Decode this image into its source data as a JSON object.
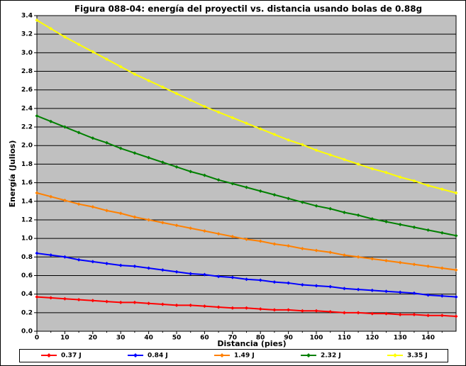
{
  "chart_data": {
    "type": "line",
    "title": "Figura 088-04: energía del proyectil vs. distancia usando bolas de 0.88g",
    "x_label": "Distancia (pies)",
    "y_label": "Energía (Julios)",
    "x": [
      0,
      5,
      10,
      15,
      20,
      25,
      30,
      35,
      40,
      45,
      50,
      55,
      60,
      65,
      70,
      75,
      80,
      85,
      90,
      95,
      100,
      105,
      110,
      115,
      120,
      125,
      130,
      135,
      140,
      145,
      150
    ],
    "xlim": [
      0,
      150
    ],
    "xticks": [
      0,
      10,
      20,
      30,
      40,
      50,
      60,
      70,
      80,
      90,
      100,
      110,
      120,
      130,
      140
    ],
    "ylim": [
      0,
      3.4
    ],
    "yticks": [
      {
        "value": 0,
        "label": "0.0"
      },
      0.2,
      0.4,
      0.6,
      0.8,
      {
        "value": 1,
        "label": "1.0"
      },
      1.2,
      1.4,
      1.6,
      1.8,
      {
        "value": 2,
        "label": "2.0"
      },
      2.2,
      2.4,
      2.6,
      2.8,
      {
        "value": 3,
        "label": "3.0"
      },
      3.2,
      3.4
    ],
    "grid": true,
    "legend": "bottom",
    "series": [
      {
        "name": "0.37 J",
        "color": "#ff0000",
        "values": [
          0.37,
          0.36,
          0.35,
          0.34,
          0.33,
          0.32,
          0.31,
          0.31,
          0.3,
          0.29,
          0.28,
          0.28,
          0.27,
          0.26,
          0.25,
          0.25,
          0.24,
          0.23,
          0.23,
          0.22,
          0.22,
          0.21,
          0.2,
          0.2,
          0.19,
          0.19,
          0.18,
          0.18,
          0.17,
          0.17,
          0.16
        ]
      },
      {
        "name": "0.84 J",
        "color": "#0000ff",
        "values": [
          0.84,
          0.82,
          0.8,
          0.77,
          0.75,
          0.73,
          0.71,
          0.7,
          0.68,
          0.66,
          0.64,
          0.62,
          0.61,
          0.59,
          0.58,
          0.56,
          0.55,
          0.53,
          0.52,
          0.5,
          0.49,
          0.48,
          0.46,
          0.45,
          0.44,
          0.43,
          0.42,
          0.41,
          0.39,
          0.38,
          0.37
        ]
      },
      {
        "name": "1.49 J",
        "color": "#ff8000",
        "values": [
          1.49,
          1.45,
          1.41,
          1.37,
          1.34,
          1.3,
          1.27,
          1.23,
          1.2,
          1.17,
          1.14,
          1.11,
          1.08,
          1.05,
          1.02,
          0.99,
          0.97,
          0.94,
          0.92,
          0.89,
          0.87,
          0.85,
          0.82,
          0.8,
          0.78,
          0.76,
          0.74,
          0.72,
          0.7,
          0.68,
          0.66
        ]
      },
      {
        "name": "2.32 J",
        "color": "#008000",
        "values": [
          2.32,
          2.26,
          2.2,
          2.14,
          2.08,
          2.03,
          1.97,
          1.92,
          1.87,
          1.82,
          1.77,
          1.72,
          1.68,
          1.63,
          1.59,
          1.55,
          1.51,
          1.47,
          1.43,
          1.39,
          1.35,
          1.32,
          1.28,
          1.25,
          1.21,
          1.18,
          1.15,
          1.12,
          1.09,
          1.06,
          1.03
        ]
      },
      {
        "name": "3.35 J",
        "color": "#ffff00",
        "values": [
          3.35,
          3.26,
          3.17,
          3.09,
          3.01,
          2.93,
          2.85,
          2.77,
          2.7,
          2.63,
          2.56,
          2.49,
          2.42,
          2.36,
          2.3,
          2.24,
          2.18,
          2.12,
          2.06,
          2.01,
          1.95,
          1.9,
          1.85,
          1.8,
          1.75,
          1.71,
          1.66,
          1.62,
          1.57,
          1.53,
          1.49
        ]
      }
    ]
  }
}
